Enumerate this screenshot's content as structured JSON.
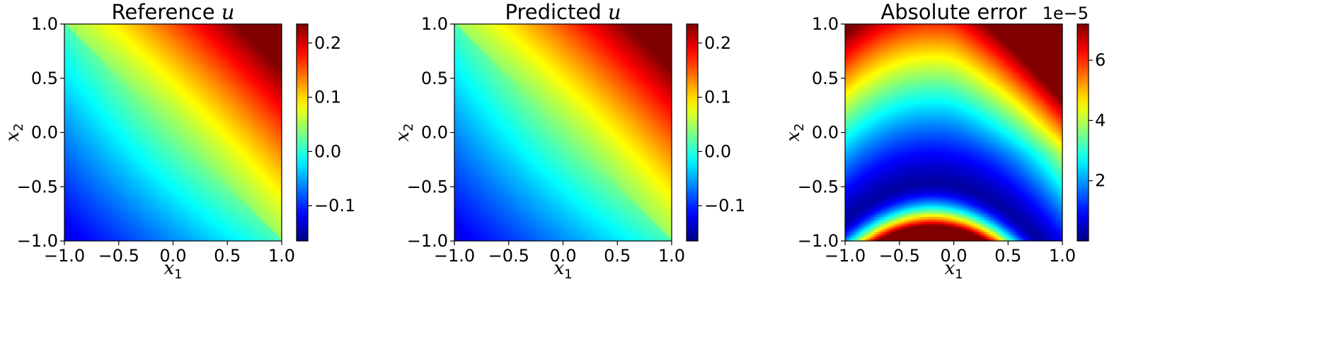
{
  "chart_data": [
    {
      "type": "heatmap",
      "title_text": "Reference ",
      "title_math": "u",
      "xlabel_var": "x",
      "xlabel_sub": "1",
      "ylabel_var": "x",
      "ylabel_sub": "2",
      "xlim": [
        -1.0,
        1.0
      ],
      "ylim": [
        -1.0,
        1.0
      ],
      "xticks": [
        -1.0,
        -0.5,
        0.0,
        0.5,
        1.0
      ],
      "xtick_labels": [
        "−1.0",
        "−0.5",
        "0.0",
        "0.5",
        "1.0"
      ],
      "yticks": [
        -1.0,
        -0.5,
        0.0,
        0.5,
        1.0
      ],
      "ytick_labels": [
        "−1.0",
        "−0.5",
        "0.0",
        "0.5",
        "1.0"
      ],
      "field": "reference_u",
      "colormap": "jet",
      "colorbar": {
        "range": [
          -0.165,
          0.235
        ],
        "ticks": [
          -0.1,
          0.0,
          0.1,
          0.2
        ],
        "tick_labels": [
          "−0.1",
          "0.0",
          "0.1",
          "0.2"
        ],
        "offset_text": ""
      }
    },
    {
      "type": "heatmap",
      "title_text": "Predicted ",
      "title_math": "u",
      "xlabel_var": "x",
      "xlabel_sub": "1",
      "ylabel_var": "x",
      "ylabel_sub": "2",
      "xlim": [
        -1.0,
        1.0
      ],
      "ylim": [
        -1.0,
        1.0
      ],
      "xticks": [
        -1.0,
        -0.5,
        0.0,
        0.5,
        1.0
      ],
      "xtick_labels": [
        "−1.0",
        "−0.5",
        "0.0",
        "0.5",
        "1.0"
      ],
      "yticks": [
        -1.0,
        -0.5,
        0.0,
        0.5,
        1.0
      ],
      "ytick_labels": [
        "−1.0",
        "−0.5",
        "0.0",
        "0.5",
        "1.0"
      ],
      "field": "predicted_u",
      "colormap": "jet",
      "colorbar": {
        "range": [
          -0.165,
          0.235
        ],
        "ticks": [
          -0.1,
          0.0,
          0.1,
          0.2
        ],
        "tick_labels": [
          "−0.1",
          "0.0",
          "0.1",
          "0.2"
        ],
        "offset_text": ""
      }
    },
    {
      "type": "heatmap",
      "title_text": "Absolute error",
      "title_math": "",
      "xlabel_var": "x",
      "xlabel_sub": "1",
      "ylabel_var": "x",
      "ylabel_sub": "2",
      "xlim": [
        -1.0,
        1.0
      ],
      "ylim": [
        -1.0,
        1.0
      ],
      "xticks": [
        -1.0,
        -0.5,
        0.0,
        0.5,
        1.0
      ],
      "xtick_labels": [
        "−1.0",
        "−0.5",
        "0.0",
        "0.5",
        "1.0"
      ],
      "yticks": [
        -1.0,
        -0.5,
        0.0,
        0.5,
        1.0
      ],
      "ytick_labels": [
        "−1.0",
        "−0.5",
        "0.0",
        "0.5",
        "1.0"
      ],
      "field": "absolute_error",
      "colormap": "jet",
      "colorbar": {
        "range": [
          0.0,
          7.2
        ],
        "ticks": [
          2,
          4,
          6
        ],
        "tick_labels": [
          "2",
          "4",
          "6"
        ],
        "offset_text": "1e−5"
      }
    }
  ]
}
